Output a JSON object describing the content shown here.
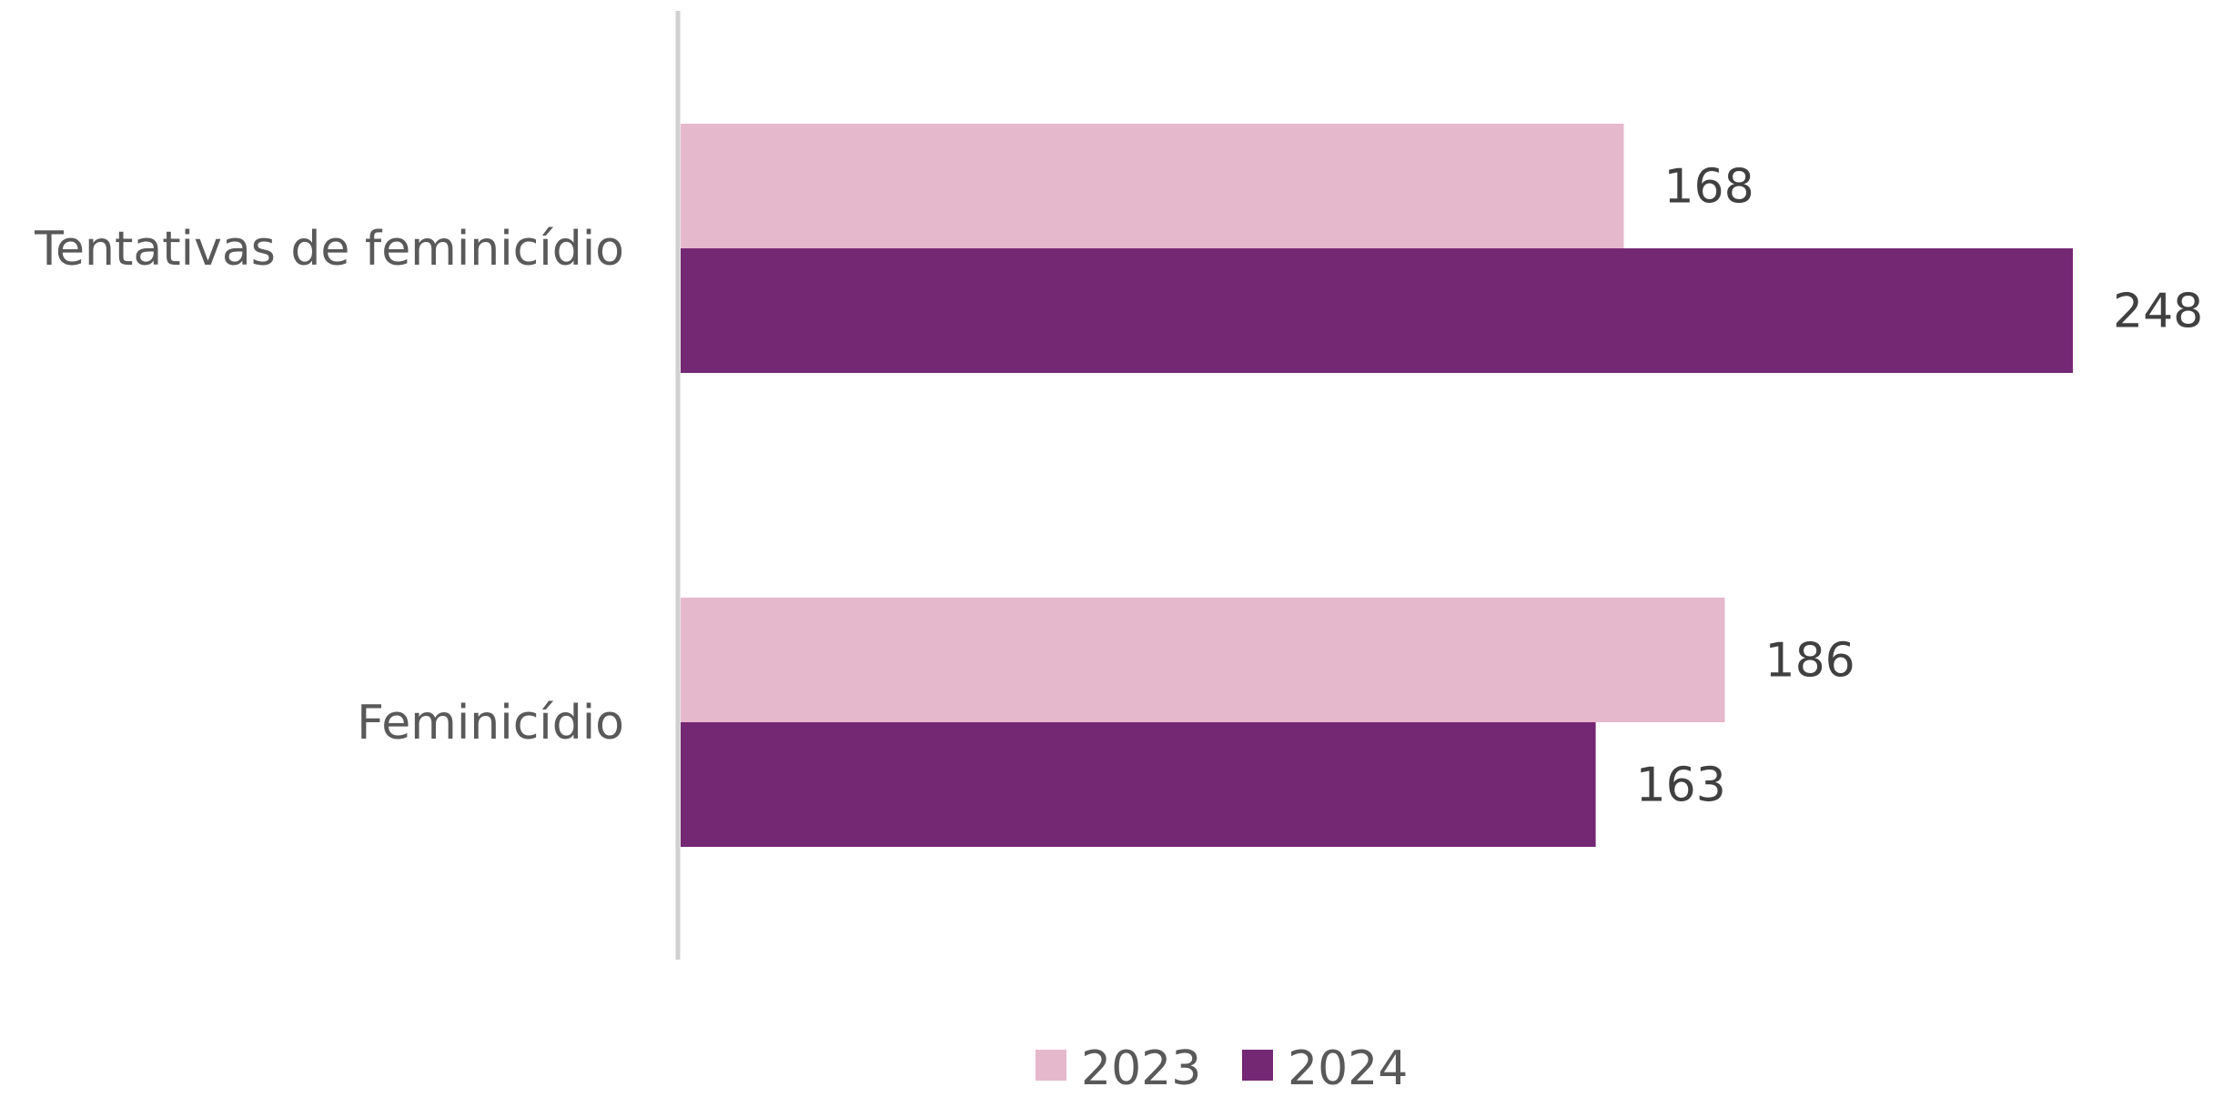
{
  "chart_data": {
    "type": "bar",
    "orientation": "horizontal",
    "categories": [
      "Tentativas de feminicídio",
      "Feminicídio"
    ],
    "series": [
      {
        "name": "2023",
        "values": [
          168,
          186
        ],
        "color": "#E6B8CC"
      },
      {
        "name": "2024",
        "values": [
          248,
          163
        ],
        "color": "#742874"
      }
    ],
    "xlim": [
      0,
      248
    ],
    "grid": false,
    "data_labels": true,
    "legend": "bottom-center"
  }
}
